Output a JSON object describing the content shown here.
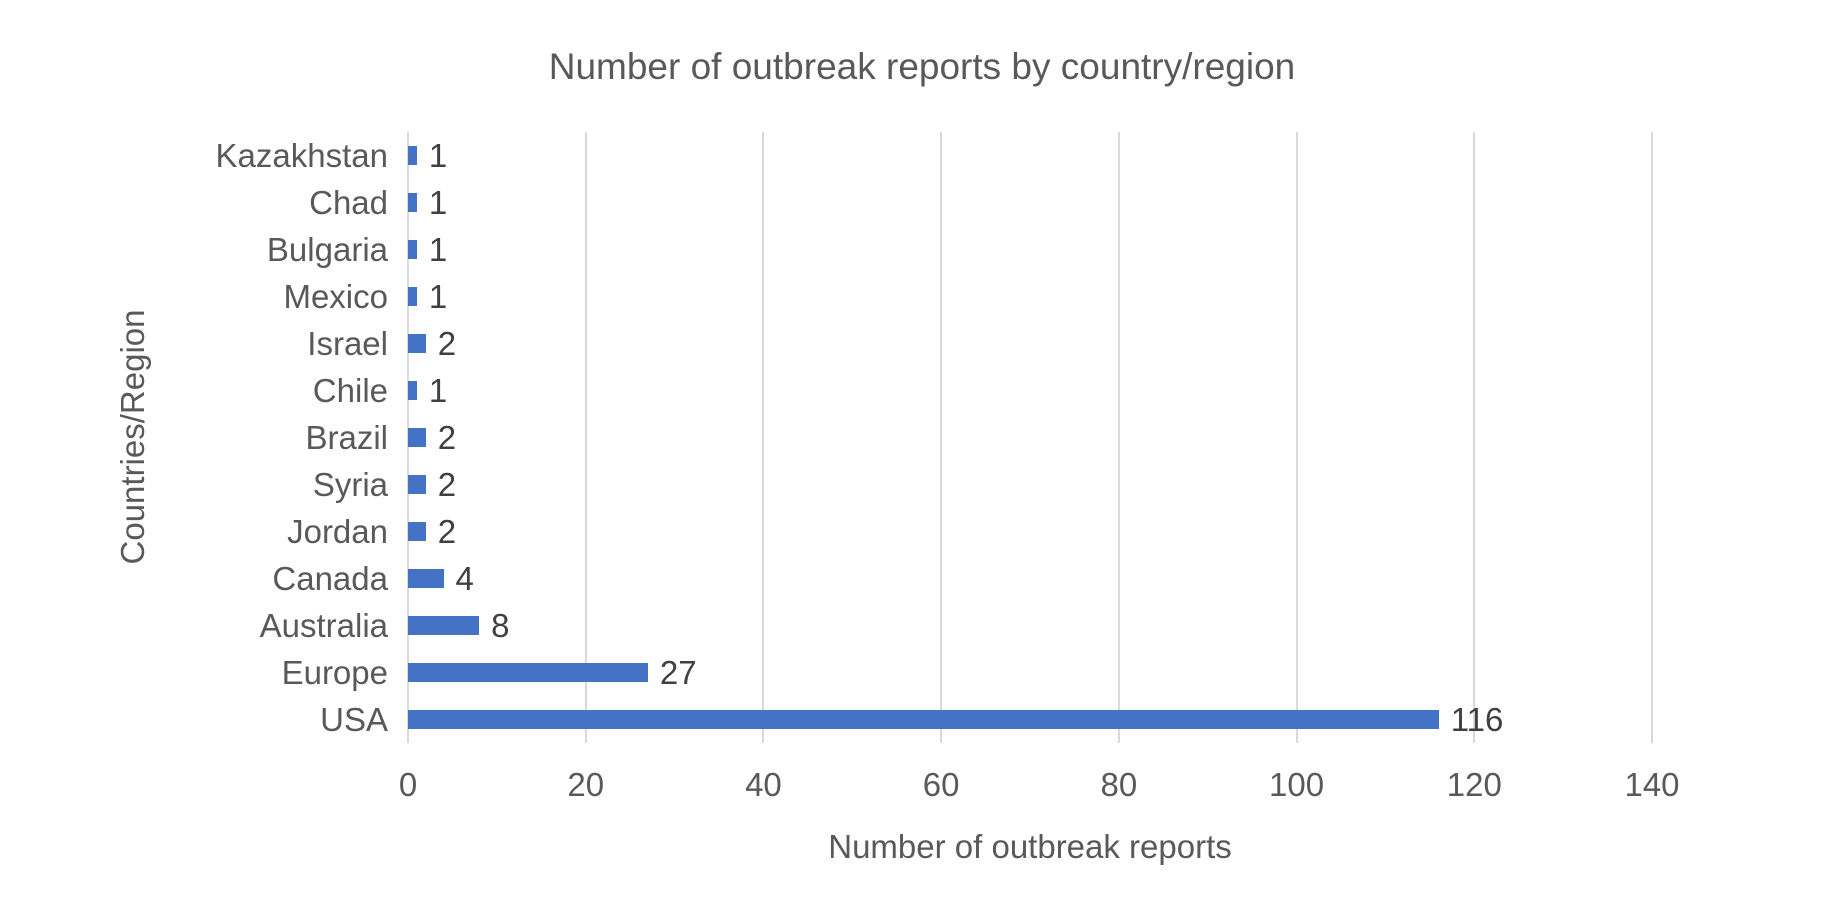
{
  "chart_data": {
    "type": "bar",
    "orientation": "horizontal",
    "title": "Number of outbreak reports by country/region",
    "xlabel": "Number of outbreak reports",
    "ylabel": "Countries/Region",
    "categories_top_to_bottom": [
      "Kazakhstan",
      "Chad",
      "Bulgaria",
      "Mexico",
      "Israel",
      "Chile",
      "Brazil",
      "Syria",
      "Jordan",
      "Canada",
      "Australia",
      "Europe",
      "USA"
    ],
    "values": [
      1,
      1,
      1,
      1,
      2,
      1,
      2,
      2,
      2,
      4,
      8,
      27,
      116
    ],
    "xlim": [
      0,
      140
    ],
    "xticks": [
      0,
      20,
      40,
      60,
      80,
      100,
      120,
      140
    ],
    "grid": true,
    "legend": "none",
    "colors": {
      "bar": "#4472C4",
      "gridline": "#D9D9D9",
      "axis_text": "#595959",
      "value_label": "#404040",
      "background": "#FFFFFF"
    }
  }
}
